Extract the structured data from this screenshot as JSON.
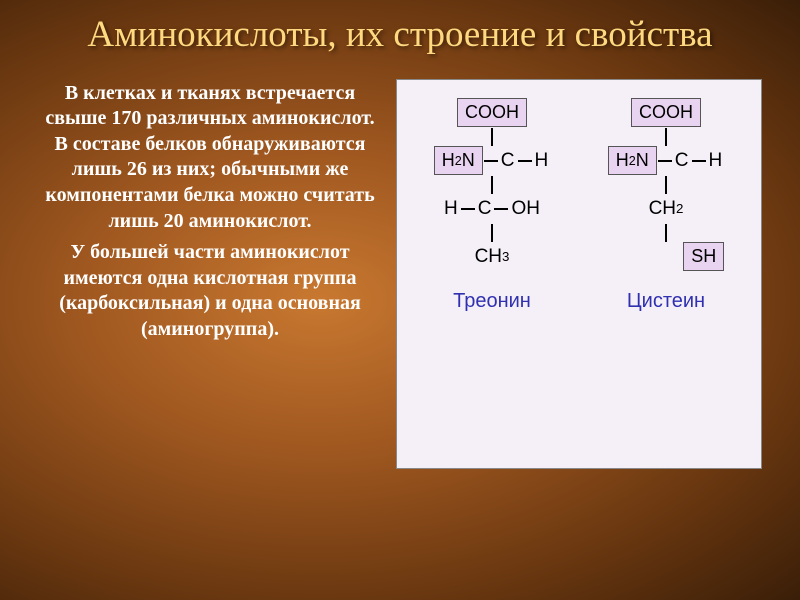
{
  "title": "Аминокислоты, их строение и свойства",
  "title_fontsize": 37,
  "title_color": "#ffd980",
  "paragraphs": [
    "В клетках и тканях встречается свыше 170 различных аминокислот. В составе белков обнаруживаются лишь 26 из них; обычными же компонентами белка можно считать лишь 20 аминокислот.",
    "У большей части аминокислот имеются одна кислотная группа (карбоксильная) и одна основная (аминогруппа)."
  ],
  "body_fontsize": 20,
  "body_color": "#ffffff",
  "diagram": {
    "background_color": "#f5f0f8",
    "box_fill": "#e8d4f0",
    "name_color": "#3030b0",
    "molecules": [
      {
        "name": "Треонин",
        "levels": [
          {
            "type": "boxed-top",
            "text": "COOH"
          },
          {
            "type": "center-with-left",
            "left_boxed": "H2N",
            "center": "C",
            "right": "H"
          },
          {
            "type": "center-plain",
            "left": "H",
            "center": "C",
            "right": "OH"
          },
          {
            "type": "terminal",
            "text": "CH3"
          }
        ]
      },
      {
        "name": "Цистеин",
        "levels": [
          {
            "type": "boxed-top",
            "text": "COOH"
          },
          {
            "type": "center-with-left",
            "left_boxed": "H2N",
            "center": "C",
            "right": "H"
          },
          {
            "type": "ch2",
            "text": "CH2"
          },
          {
            "type": "terminal-boxed",
            "text": "SH"
          }
        ]
      }
    ]
  }
}
